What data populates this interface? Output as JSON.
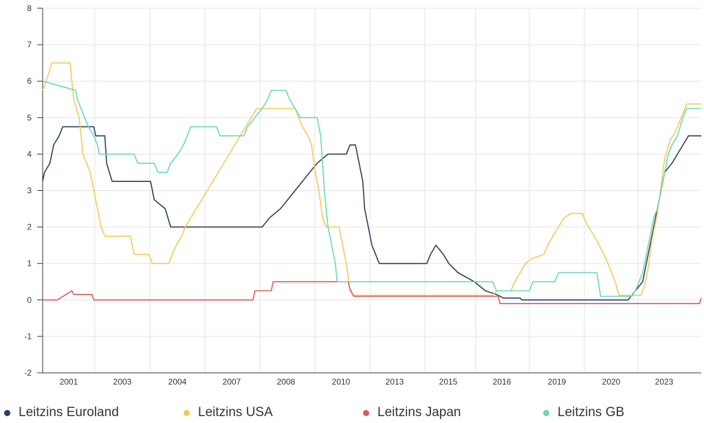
{
  "chart_data": {
    "type": "line",
    "ylim": [
      -2,
      8
    ],
    "y_ticks": [
      -2,
      -1,
      0,
      1,
      2,
      3,
      4,
      5,
      6,
      7,
      8
    ],
    "x_tick_labels": [
      "2001",
      "2003",
      "2004",
      "2007",
      "2008",
      "2010",
      "2013",
      "2015",
      "2016",
      "2019",
      "2020",
      "2023"
    ],
    "grid": true,
    "legend_position": "bottom",
    "series": [
      {
        "name": "Leitzins Euroland",
        "color": "#2b3f5c",
        "points": [
          [
            0,
            3.25
          ],
          [
            0.05,
            3.5
          ],
          [
            0.2,
            3.75
          ],
          [
            0.3,
            4.25
          ],
          [
            0.45,
            4.5
          ],
          [
            0.55,
            4.75
          ],
          [
            1.4,
            4.75
          ],
          [
            1.45,
            4.5
          ],
          [
            1.7,
            4.5
          ],
          [
            1.75,
            3.75
          ],
          [
            1.9,
            3.25
          ],
          [
            2.95,
            3.25
          ],
          [
            3.05,
            2.75
          ],
          [
            3.35,
            2.5
          ],
          [
            3.5,
            2.0
          ],
          [
            6.0,
            2.0
          ],
          [
            6.2,
            2.25
          ],
          [
            6.5,
            2.5
          ],
          [
            6.7,
            2.75
          ],
          [
            6.9,
            3.0
          ],
          [
            7.1,
            3.25
          ],
          [
            7.3,
            3.5
          ],
          [
            7.5,
            3.75
          ],
          [
            7.8,
            4.0
          ],
          [
            8.3,
            4.0
          ],
          [
            8.4,
            4.25
          ],
          [
            8.55,
            4.25
          ],
          [
            8.65,
            3.75
          ],
          [
            8.75,
            3.25
          ],
          [
            8.8,
            2.5
          ],
          [
            8.9,
            2.0
          ],
          [
            9.0,
            1.5
          ],
          [
            9.1,
            1.25
          ],
          [
            9.2,
            1.0
          ],
          [
            10.5,
            1.0
          ],
          [
            10.6,
            1.25
          ],
          [
            10.75,
            1.5
          ],
          [
            10.95,
            1.25
          ],
          [
            11.1,
            1.0
          ],
          [
            11.35,
            0.75
          ],
          [
            11.8,
            0.5
          ],
          [
            12.1,
            0.25
          ],
          [
            12.4,
            0.15
          ],
          [
            12.6,
            0.05
          ],
          [
            13.05,
            0.05
          ],
          [
            13.1,
            0.0
          ],
          [
            16.0,
            0.0
          ],
          [
            16.4,
            0.5
          ],
          [
            16.55,
            1.25
          ],
          [
            16.7,
            2.0
          ],
          [
            16.8,
            2.5
          ],
          [
            16.9,
            3.0
          ],
          [
            17.0,
            3.5
          ],
          [
            17.2,
            3.75
          ],
          [
            17.35,
            4.0
          ],
          [
            17.5,
            4.25
          ],
          [
            17.65,
            4.5
          ],
          [
            18.0,
            4.5
          ]
        ]
      },
      {
        "name": "Leitzins USA",
        "color": "#f5c85a",
        "points": [
          [
            0,
            5.75
          ],
          [
            0.1,
            6.0
          ],
          [
            0.25,
            6.5
          ],
          [
            0.75,
            6.5
          ],
          [
            0.85,
            5.5
          ],
          [
            1.0,
            5.0
          ],
          [
            1.05,
            4.5
          ],
          [
            1.1,
            4.0
          ],
          [
            1.2,
            3.75
          ],
          [
            1.3,
            3.5
          ],
          [
            1.4,
            3.0
          ],
          [
            1.5,
            2.5
          ],
          [
            1.6,
            2.0
          ],
          [
            1.7,
            1.75
          ],
          [
            2.4,
            1.75
          ],
          [
            2.5,
            1.25
          ],
          [
            2.9,
            1.25
          ],
          [
            3.0,
            1.0
          ],
          [
            3.45,
            1.0
          ],
          [
            3.55,
            1.25
          ],
          [
            3.65,
            1.5
          ],
          [
            3.8,
            1.75
          ],
          [
            3.9,
            2.0
          ],
          [
            4.05,
            2.25
          ],
          [
            4.2,
            2.5
          ],
          [
            4.35,
            2.75
          ],
          [
            4.5,
            3.0
          ],
          [
            4.65,
            3.25
          ],
          [
            4.8,
            3.5
          ],
          [
            4.95,
            3.75
          ],
          [
            5.1,
            4.0
          ],
          [
            5.25,
            4.25
          ],
          [
            5.4,
            4.5
          ],
          [
            5.55,
            4.75
          ],
          [
            5.7,
            5.0
          ],
          [
            5.85,
            5.25
          ],
          [
            6.9,
            5.25
          ],
          [
            7.1,
            4.75
          ],
          [
            7.25,
            4.5
          ],
          [
            7.35,
            4.25
          ],
          [
            7.45,
            3.5
          ],
          [
            7.55,
            3.0
          ],
          [
            7.65,
            2.25
          ],
          [
            7.75,
            2.0
          ],
          [
            8.1,
            2.0
          ],
          [
            8.2,
            1.5
          ],
          [
            8.3,
            1.0
          ],
          [
            8.4,
            0.25
          ],
          [
            8.5,
            0.125
          ],
          [
            12.3,
            0.125
          ],
          [
            12.4,
            0.25
          ],
          [
            12.8,
            0.25
          ],
          [
            12.9,
            0.5
          ],
          [
            13.05,
            0.75
          ],
          [
            13.2,
            1.0
          ],
          [
            13.35,
            1.125
          ],
          [
            13.7,
            1.25
          ],
          [
            13.8,
            1.5
          ],
          [
            13.95,
            1.75
          ],
          [
            14.1,
            2.0
          ],
          [
            14.25,
            2.25
          ],
          [
            14.45,
            2.375
          ],
          [
            14.75,
            2.375
          ],
          [
            14.85,
            2.125
          ],
          [
            15.0,
            1.875
          ],
          [
            15.15,
            1.625
          ],
          [
            15.4,
            1.125
          ],
          [
            15.65,
            0.5
          ],
          [
            15.75,
            0.125
          ],
          [
            16.35,
            0.125
          ],
          [
            16.45,
            0.375
          ],
          [
            16.55,
            0.875
          ],
          [
            16.65,
            1.625
          ],
          [
            16.8,
            2.375
          ],
          [
            16.9,
            3.125
          ],
          [
            17.0,
            3.875
          ],
          [
            17.15,
            4.375
          ],
          [
            17.3,
            4.625
          ],
          [
            17.4,
            4.875
          ],
          [
            17.5,
            5.125
          ],
          [
            17.6,
            5.375
          ],
          [
            18.0,
            5.375
          ]
        ]
      },
      {
        "name": "Leitzins Japan",
        "color": "#dc5a5a",
        "points": [
          [
            0,
            0.0
          ],
          [
            0.4,
            0.0
          ],
          [
            0.8,
            0.25
          ],
          [
            0.85,
            0.15
          ],
          [
            1.35,
            0.15
          ],
          [
            1.4,
            0.0
          ],
          [
            5.75,
            0.0
          ],
          [
            5.8,
            0.25
          ],
          [
            6.25,
            0.25
          ],
          [
            6.3,
            0.5
          ],
          [
            8.35,
            0.5
          ],
          [
            8.4,
            0.3
          ],
          [
            8.5,
            0.1
          ],
          [
            12.45,
            0.1
          ],
          [
            12.5,
            -0.1
          ],
          [
            17.95,
            -0.1
          ],
          [
            18.0,
            0.05
          ]
        ]
      },
      {
        "name": "Leitzins GB",
        "color": "#6ad8b8",
        "points": [
          [
            0,
            6.0
          ],
          [
            0.9,
            5.75
          ],
          [
            0.95,
            5.5
          ],
          [
            1.05,
            5.25
          ],
          [
            1.15,
            5.0
          ],
          [
            1.25,
            4.75
          ],
          [
            1.4,
            4.5
          ],
          [
            1.5,
            4.25
          ],
          [
            1.55,
            4.0
          ],
          [
            2.5,
            4.0
          ],
          [
            2.6,
            3.75
          ],
          [
            3.05,
            3.75
          ],
          [
            3.15,
            3.5
          ],
          [
            3.4,
            3.5
          ],
          [
            3.5,
            3.75
          ],
          [
            3.7,
            4.0
          ],
          [
            3.85,
            4.25
          ],
          [
            3.95,
            4.5
          ],
          [
            4.05,
            4.75
          ],
          [
            4.75,
            4.75
          ],
          [
            4.85,
            4.5
          ],
          [
            5.5,
            4.5
          ],
          [
            5.6,
            4.75
          ],
          [
            5.8,
            5.0
          ],
          [
            6.0,
            5.25
          ],
          [
            6.15,
            5.5
          ],
          [
            6.25,
            5.75
          ],
          [
            6.65,
            5.75
          ],
          [
            6.75,
            5.5
          ],
          [
            6.9,
            5.25
          ],
          [
            7.05,
            5.0
          ],
          [
            7.5,
            5.0
          ],
          [
            7.6,
            4.5
          ],
          [
            7.7,
            3.0
          ],
          [
            7.8,
            2.0
          ],
          [
            7.9,
            1.5
          ],
          [
            8.0,
            1.0
          ],
          [
            8.05,
            0.5
          ],
          [
            12.3,
            0.5
          ],
          [
            12.4,
            0.25
          ],
          [
            13.3,
            0.25
          ],
          [
            13.4,
            0.5
          ],
          [
            14.0,
            0.5
          ],
          [
            14.1,
            0.75
          ],
          [
            15.15,
            0.75
          ],
          [
            15.25,
            0.1
          ],
          [
            16.1,
            0.1
          ],
          [
            16.2,
            0.25
          ],
          [
            16.3,
            0.5
          ],
          [
            16.4,
            0.75
          ],
          [
            16.5,
            1.25
          ],
          [
            16.6,
            1.75
          ],
          [
            16.7,
            2.25
          ],
          [
            16.8,
            2.5
          ],
          [
            16.9,
            3.0
          ],
          [
            17.0,
            3.5
          ],
          [
            17.1,
            4.0
          ],
          [
            17.2,
            4.25
          ],
          [
            17.35,
            4.5
          ],
          [
            17.5,
            5.0
          ],
          [
            17.6,
            5.25
          ],
          [
            18.0,
            5.25
          ]
        ]
      }
    ]
  }
}
